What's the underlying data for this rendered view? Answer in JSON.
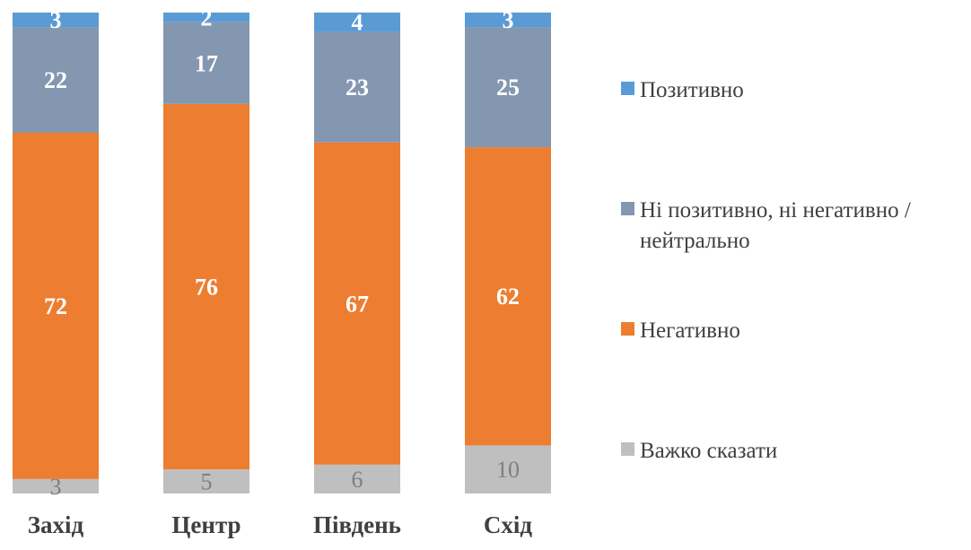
{
  "chart_data": {
    "type": "bar",
    "stacked": true,
    "orientation": "vertical",
    "categories": [
      "Захід",
      "Центр",
      "Південь",
      "Схід"
    ],
    "series": [
      {
        "name": "Важко сказати",
        "values": [
          3,
          5,
          6,
          10
        ],
        "color": "#bfbfbf"
      },
      {
        "name": "Негативно",
        "values": [
          72,
          76,
          67,
          62
        ],
        "color": "#ed7d31"
      },
      {
        "name": "Ні позитивно, ні негативно / нейтрально",
        "values": [
          22,
          17,
          23,
          25
        ],
        "color": "#8497b0"
      },
      {
        "name": "Позитивно",
        "values": [
          3,
          2,
          4,
          3
        ],
        "color": "#5b9bd5"
      }
    ],
    "legend_order": [
      "Позитивно",
      "Ні позитивно, ні негативно / нейтрально",
      "Негативно",
      "Важко сказати"
    ],
    "legend_position": "right",
    "grid": false,
    "ylim": [
      0,
      100
    ]
  }
}
